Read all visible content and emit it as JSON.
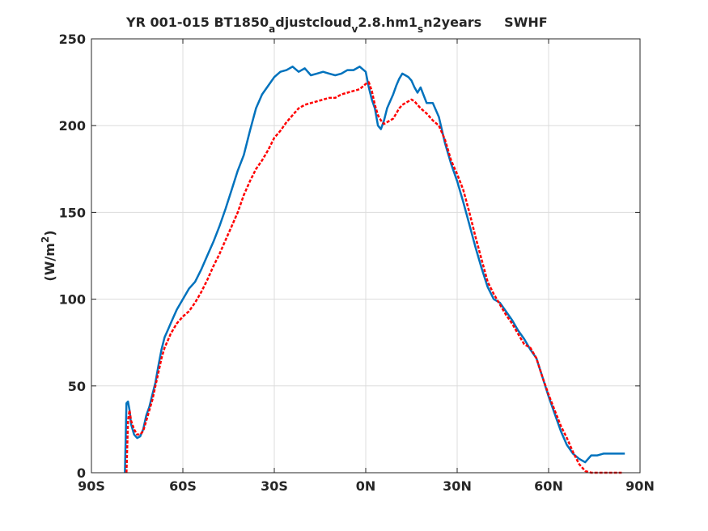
{
  "chart_data": {
    "type": "line",
    "title_parts": [
      {
        "t": "YR 001-015 BT1850",
        "s": "n"
      },
      {
        "t": "a",
        "s": "sub"
      },
      {
        "t": "djustcloud",
        "s": "n"
      },
      {
        "t": "v",
        "s": "sub"
      },
      {
        "t": "2.8.hm1",
        "s": "n"
      },
      {
        "t": "s",
        "s": "sub"
      },
      {
        "t": "n2years",
        "s": "n"
      }
    ],
    "field_name": "SWHF",
    "ylabel_main": "(W/m",
    "ylabel_sup": "2",
    "ylabel_end": ")",
    "xlim": [
      -90,
      90
    ],
    "ylim": [
      0,
      250
    ],
    "xticks": [
      -90,
      -60,
      -30,
      0,
      30,
      60,
      90
    ],
    "xtick_labels": [
      "90S",
      "60S",
      "30S",
      "0N",
      "30N",
      "60N",
      "90N"
    ],
    "yticks": [
      0,
      50,
      100,
      150,
      200,
      250
    ],
    "ytick_labels": [
      "0",
      "50",
      "100",
      "150",
      "200",
      "250"
    ],
    "grid": true,
    "series": [
      {
        "color": "#0072BD",
        "style": "solid",
        "x": [
          -79,
          -78.5,
          -78,
          -77.5,
          -77,
          -76,
          -75,
          -74,
          -73,
          -72,
          -71,
          -70,
          -69,
          -68,
          -67,
          -66,
          -65,
          -64,
          -63,
          -62,
          -60,
          -58,
          -56,
          -54,
          -52,
          -50,
          -48,
          -46,
          -44,
          -42,
          -40,
          -38,
          -36,
          -34,
          -32,
          -30,
          -28,
          -26,
          -24,
          -22,
          -20,
          -18,
          -16,
          -14,
          -12,
          -10,
          -8,
          -6,
          -4,
          -2,
          0,
          1,
          2,
          3,
          4,
          5,
          6,
          7,
          8,
          9,
          10,
          11,
          12,
          13,
          14,
          15,
          16,
          17,
          18,
          20,
          22,
          24,
          26,
          28,
          30,
          32,
          34,
          36,
          38,
          40,
          42,
          44,
          46,
          48,
          50,
          52,
          54,
          56,
          58,
          60,
          62,
          64,
          66,
          68,
          70,
          72,
          74,
          76,
          78,
          80,
          82,
          84,
          85
        ],
        "values": [
          0,
          40,
          41,
          36,
          28,
          22,
          20,
          21,
          25,
          33,
          38,
          45,
          52,
          62,
          71,
          78,
          82,
          86,
          90,
          94,
          100,
          106,
          110,
          117,
          125,
          133,
          142,
          152,
          163,
          174,
          183,
          197,
          210,
          218,
          223,
          228,
          231,
          232,
          234,
          231,
          233,
          229,
          230,
          231,
          230,
          229,
          230,
          232,
          232,
          234,
          231,
          222,
          215,
          210,
          200,
          198,
          203,
          210,
          214,
          218,
          223,
          227,
          230,
          229,
          228,
          226,
          222,
          219,
          222,
          213,
          213,
          205,
          190,
          178,
          168,
          156,
          143,
          130,
          118,
          107,
          100,
          98,
          93,
          88,
          82,
          77,
          71,
          66,
          55,
          44,
          34,
          24,
          16,
          11,
          8,
          6,
          10,
          10,
          11,
          11,
          11,
          11,
          11
        ]
      },
      {
        "color": "#FF0000",
        "style": "dashed",
        "x": [
          -78.5,
          -78,
          -77.5,
          -77,
          -76,
          -75,
          -74,
          -73,
          -72,
          -71,
          -70,
          -69,
          -68,
          -67,
          -66,
          -65,
          -64,
          -63,
          -62,
          -60,
          -58,
          -56,
          -54,
          -52,
          -50,
          -48,
          -46,
          -44,
          -42,
          -40,
          -38,
          -36,
          -34,
          -32,
          -30,
          -28,
          -26,
          -24,
          -22,
          -20,
          -18,
          -16,
          -14,
          -12,
          -10,
          -8,
          -6,
          -4,
          -2,
          0,
          1,
          2,
          3,
          4,
          5,
          6,
          7,
          8,
          9,
          10,
          11,
          12,
          13,
          14,
          15,
          16,
          17,
          18,
          20,
          22,
          24,
          26,
          28,
          30,
          32,
          34,
          36,
          38,
          40,
          42,
          44,
          46,
          48,
          50,
          52,
          54,
          56,
          58,
          60,
          62,
          64,
          66,
          68,
          70,
          72,
          74,
          76,
          78,
          80,
          82,
          84
        ],
        "values": [
          0,
          30,
          36,
          30,
          25,
          22,
          22,
          24,
          30,
          36,
          42,
          50,
          58,
          66,
          72,
          76,
          80,
          83,
          86,
          90,
          93,
          98,
          104,
          111,
          119,
          126,
          134,
          142,
          150,
          160,
          168,
          175,
          180,
          186,
          193,
          197,
          202,
          206,
          210,
          212,
          213,
          214,
          215,
          216,
          216,
          218,
          219,
          220,
          221,
          224,
          225,
          220,
          212,
          206,
          203,
          201,
          202,
          203,
          204,
          207,
          210,
          212,
          213,
          214,
          215,
          214,
          212,
          210,
          207,
          203,
          200,
          192,
          180,
          172,
          163,
          150,
          136,
          123,
          110,
          103,
          97,
          91,
          86,
          80,
          74,
          72,
          66,
          55,
          45,
          36,
          27,
          20,
          12,
          5,
          1,
          0,
          0,
          0,
          0,
          0,
          0
        ]
      }
    ]
  }
}
